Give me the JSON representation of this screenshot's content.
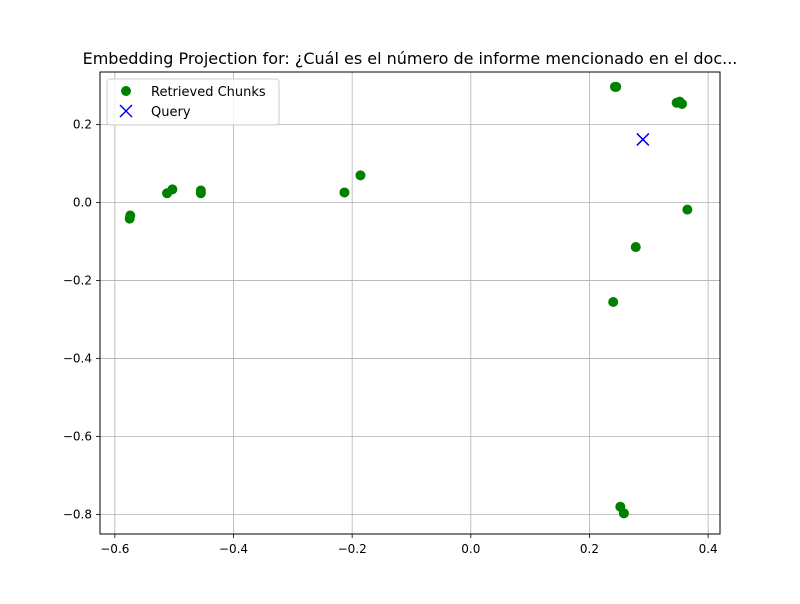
{
  "chart_data": {
    "type": "scatter",
    "title": "Embedding Projection for: ¿Cuál es el número de informe mencionado en el doc...",
    "xlabel": "",
    "ylabel": "",
    "xlim": [
      -0.625,
      0.42
    ],
    "ylim": [
      -0.85,
      0.335
    ],
    "grid": true,
    "legend_position": "top-left",
    "x_ticks": [
      -0.6,
      -0.4,
      -0.2,
      0.0,
      0.2,
      0.4
    ],
    "x_tick_labels": [
      "−0.6",
      "−0.4",
      "−0.2",
      "0.0",
      "0.2",
      "0.4"
    ],
    "y_ticks": [
      -0.8,
      -0.6,
      -0.4,
      -0.2,
      0.0,
      0.2
    ],
    "y_tick_labels": [
      "−0.8",
      "−0.6",
      "−0.4",
      "−0.2",
      "0.0",
      "0.2"
    ],
    "series": [
      {
        "name": "Retrieved Chunks",
        "marker": "circle",
        "color": "#008000",
        "points": [
          {
            "x": 0.243,
            "y": 0.297
          },
          {
            "x": 0.245,
            "y": 0.297
          },
          {
            "x": 0.347,
            "y": 0.256
          },
          {
            "x": 0.352,
            "y": 0.259
          },
          {
            "x": 0.356,
            "y": 0.253
          },
          {
            "x": 0.365,
            "y": -0.018
          },
          {
            "x": 0.278,
            "y": -0.114
          },
          {
            "x": 0.24,
            "y": -0.255
          },
          {
            "x": 0.252,
            "y": -0.78
          },
          {
            "x": 0.258,
            "y": -0.797
          },
          {
            "x": -0.213,
            "y": 0.026
          },
          {
            "x": -0.186,
            "y": 0.07
          },
          {
            "x": -0.455,
            "y": 0.031
          },
          {
            "x": -0.455,
            "y": 0.024
          },
          {
            "x": -0.503,
            "y": 0.034
          },
          {
            "x": -0.512,
            "y": 0.024
          },
          {
            "x": -0.574,
            "y": -0.033
          },
          {
            "x": -0.575,
            "y": -0.041
          }
        ]
      },
      {
        "name": "Query",
        "marker": "x",
        "color": "#0000ff",
        "points": [
          {
            "x": 0.29,
            "y": 0.162
          }
        ]
      }
    ]
  }
}
